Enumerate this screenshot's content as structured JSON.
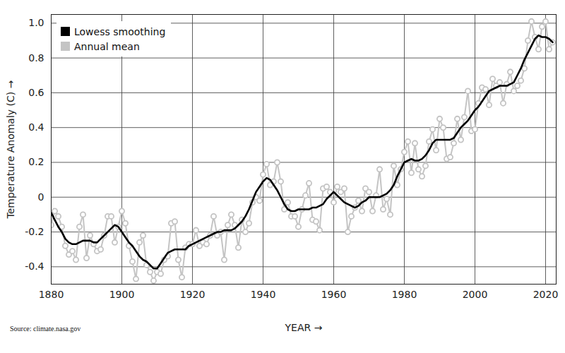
{
  "chart_data": {
    "type": "line",
    "xlabel": "YEAR",
    "ylabel": "Temperature Anomaly (C)",
    "source": "Source: climate.nasa.gov",
    "x": [
      1880,
      1881,
      1882,
      1883,
      1884,
      1885,
      1886,
      1887,
      1888,
      1889,
      1890,
      1891,
      1892,
      1893,
      1894,
      1895,
      1896,
      1897,
      1898,
      1899,
      1900,
      1901,
      1902,
      1903,
      1904,
      1905,
      1906,
      1907,
      1908,
      1909,
      1910,
      1911,
      1912,
      1913,
      1914,
      1915,
      1916,
      1917,
      1918,
      1919,
      1920,
      1921,
      1922,
      1923,
      1924,
      1925,
      1926,
      1927,
      1928,
      1929,
      1930,
      1931,
      1932,
      1933,
      1934,
      1935,
      1936,
      1937,
      1938,
      1939,
      1940,
      1941,
      1942,
      1943,
      1944,
      1945,
      1946,
      1947,
      1948,
      1949,
      1950,
      1951,
      1952,
      1953,
      1954,
      1955,
      1956,
      1957,
      1958,
      1959,
      1960,
      1961,
      1962,
      1963,
      1964,
      1965,
      1966,
      1967,
      1968,
      1969,
      1970,
      1971,
      1972,
      1973,
      1974,
      1975,
      1976,
      1977,
      1978,
      1979,
      1980,
      1981,
      1982,
      1983,
      1984,
      1985,
      1986,
      1987,
      1988,
      1989,
      1990,
      1991,
      1992,
      1993,
      1994,
      1995,
      1996,
      1997,
      1998,
      1999,
      2000,
      2001,
      2002,
      2003,
      2004,
      2005,
      2006,
      2007,
      2008,
      2009,
      2010,
      2011,
      2012,
      2013,
      2014,
      2015,
      2016,
      2017,
      2018,
      2019,
      2020,
      2021,
      2022
    ],
    "series": [
      {
        "name": "Lowess smoothing",
        "color": "#000000",
        "marker": "none",
        "line_style": "solid",
        "values": [
          -0.09,
          -0.13,
          -0.17,
          -0.2,
          -0.24,
          -0.26,
          -0.27,
          -0.27,
          -0.26,
          -0.25,
          -0.25,
          -0.25,
          -0.26,
          -0.26,
          -0.24,
          -0.22,
          -0.2,
          -0.18,
          -0.16,
          -0.17,
          -0.2,
          -0.23,
          -0.26,
          -0.28,
          -0.31,
          -0.34,
          -0.36,
          -0.37,
          -0.39,
          -0.41,
          -0.41,
          -0.38,
          -0.35,
          -0.32,
          -0.31,
          -0.3,
          -0.3,
          -0.3,
          -0.3,
          -0.28,
          -0.27,
          -0.26,
          -0.25,
          -0.24,
          -0.23,
          -0.22,
          -0.21,
          -0.2,
          -0.2,
          -0.19,
          -0.19,
          -0.19,
          -0.18,
          -0.16,
          -0.14,
          -0.11,
          -0.07,
          -0.02,
          0.03,
          0.06,
          0.09,
          0.11,
          0.1,
          0.07,
          0.04,
          0,
          -0.04,
          -0.07,
          -0.08,
          -0.08,
          -0.07,
          -0.07,
          -0.07,
          -0.07,
          -0.06,
          -0.06,
          -0.05,
          -0.04,
          -0.01,
          0.01,
          0.03,
          0.01,
          -0.01,
          -0.03,
          -0.04,
          -0.05,
          -0.06,
          -0.05,
          -0.03,
          -0.02,
          0,
          0,
          0,
          0,
          0.01,
          0.02,
          0.04,
          0.07,
          0.12,
          0.16,
          0.2,
          0.21,
          0.22,
          0.21,
          0.21,
          0.22,
          0.24,
          0.27,
          0.31,
          0.33,
          0.33,
          0.33,
          0.33,
          0.33,
          0.34,
          0.37,
          0.4,
          0.42,
          0.44,
          0.47,
          0.5,
          0.52,
          0.55,
          0.58,
          0.61,
          0.62,
          0.63,
          0.64,
          0.64,
          0.64,
          0.65,
          0.66,
          0.7,
          0.74,
          0.79,
          0.83,
          0.87,
          0.91,
          0.93,
          0.92,
          0.92,
          0.91,
          0.89
        ]
      },
      {
        "name": "Annual mean",
        "color": "#c4c4c4",
        "marker": "circle",
        "line_style": "solid",
        "values": [
          -0.16,
          -0.08,
          -0.11,
          -0.17,
          -0.28,
          -0.33,
          -0.31,
          -0.36,
          -0.17,
          -0.1,
          -0.35,
          -0.22,
          -0.27,
          -0.31,
          -0.3,
          -0.22,
          -0.11,
          -0.11,
          -0.26,
          -0.17,
          -0.08,
          -0.15,
          -0.28,
          -0.37,
          -0.47,
          -0.26,
          -0.22,
          -0.39,
          -0.43,
          -0.48,
          -0.43,
          -0.44,
          -0.36,
          -0.34,
          -0.15,
          -0.14,
          -0.36,
          -0.46,
          -0.29,
          -0.27,
          -0.27,
          -0.19,
          -0.28,
          -0.26,
          -0.27,
          -0.22,
          -0.11,
          -0.22,
          -0.2,
          -0.36,
          -0.16,
          -0.1,
          -0.16,
          -0.29,
          -0.13,
          -0.2,
          -0.15,
          -0.03,
          0,
          -0.02,
          0.13,
          0.19,
          0.07,
          0.09,
          0.2,
          0.09,
          -0.07,
          -0.03,
          -0.11,
          -0.11,
          -0.17,
          -0.07,
          0.01,
          0.08,
          -0.13,
          -0.14,
          -0.19,
          0.05,
          0.06,
          0.03,
          -0.03,
          0.06,
          0.03,
          0.05,
          -0.2,
          -0.11,
          -0.06,
          -0.02,
          -0.08,
          0.05,
          0.03,
          -0.08,
          0.01,
          0.16,
          -0.07,
          -0.01,
          -0.1,
          0.18,
          0.07,
          0.16,
          0.26,
          0.32,
          0.14,
          0.31,
          0.16,
          0.12,
          0.18,
          0.32,
          0.39,
          0.27,
          0.45,
          0.4,
          0.22,
          0.23,
          0.31,
          0.45,
          0.33,
          0.46,
          0.61,
          0.38,
          0.39,
          0.54,
          0.63,
          0.62,
          0.53,
          0.68,
          0.64,
          0.66,
          0.54,
          0.65,
          0.72,
          0.61,
          0.64,
          0.67,
          0.74,
          0.9,
          1.01,
          0.92,
          0.85,
          0.98,
          1.01,
          0.85,
          0.89
        ]
      }
    ],
    "xlim": [
      1880,
      2023
    ],
    "xticks": [
      1880,
      1900,
      1920,
      1940,
      1960,
      1980,
      2000,
      2020
    ],
    "ylim": [
      -0.5,
      1.05
    ],
    "yticks": [
      -0.4,
      -0.2,
      0,
      0.2,
      0.4,
      0.6,
      0.8,
      {
        "value": 1,
        "label": "1.0"
      }
    ],
    "grid": true,
    "legend": "top-left"
  }
}
